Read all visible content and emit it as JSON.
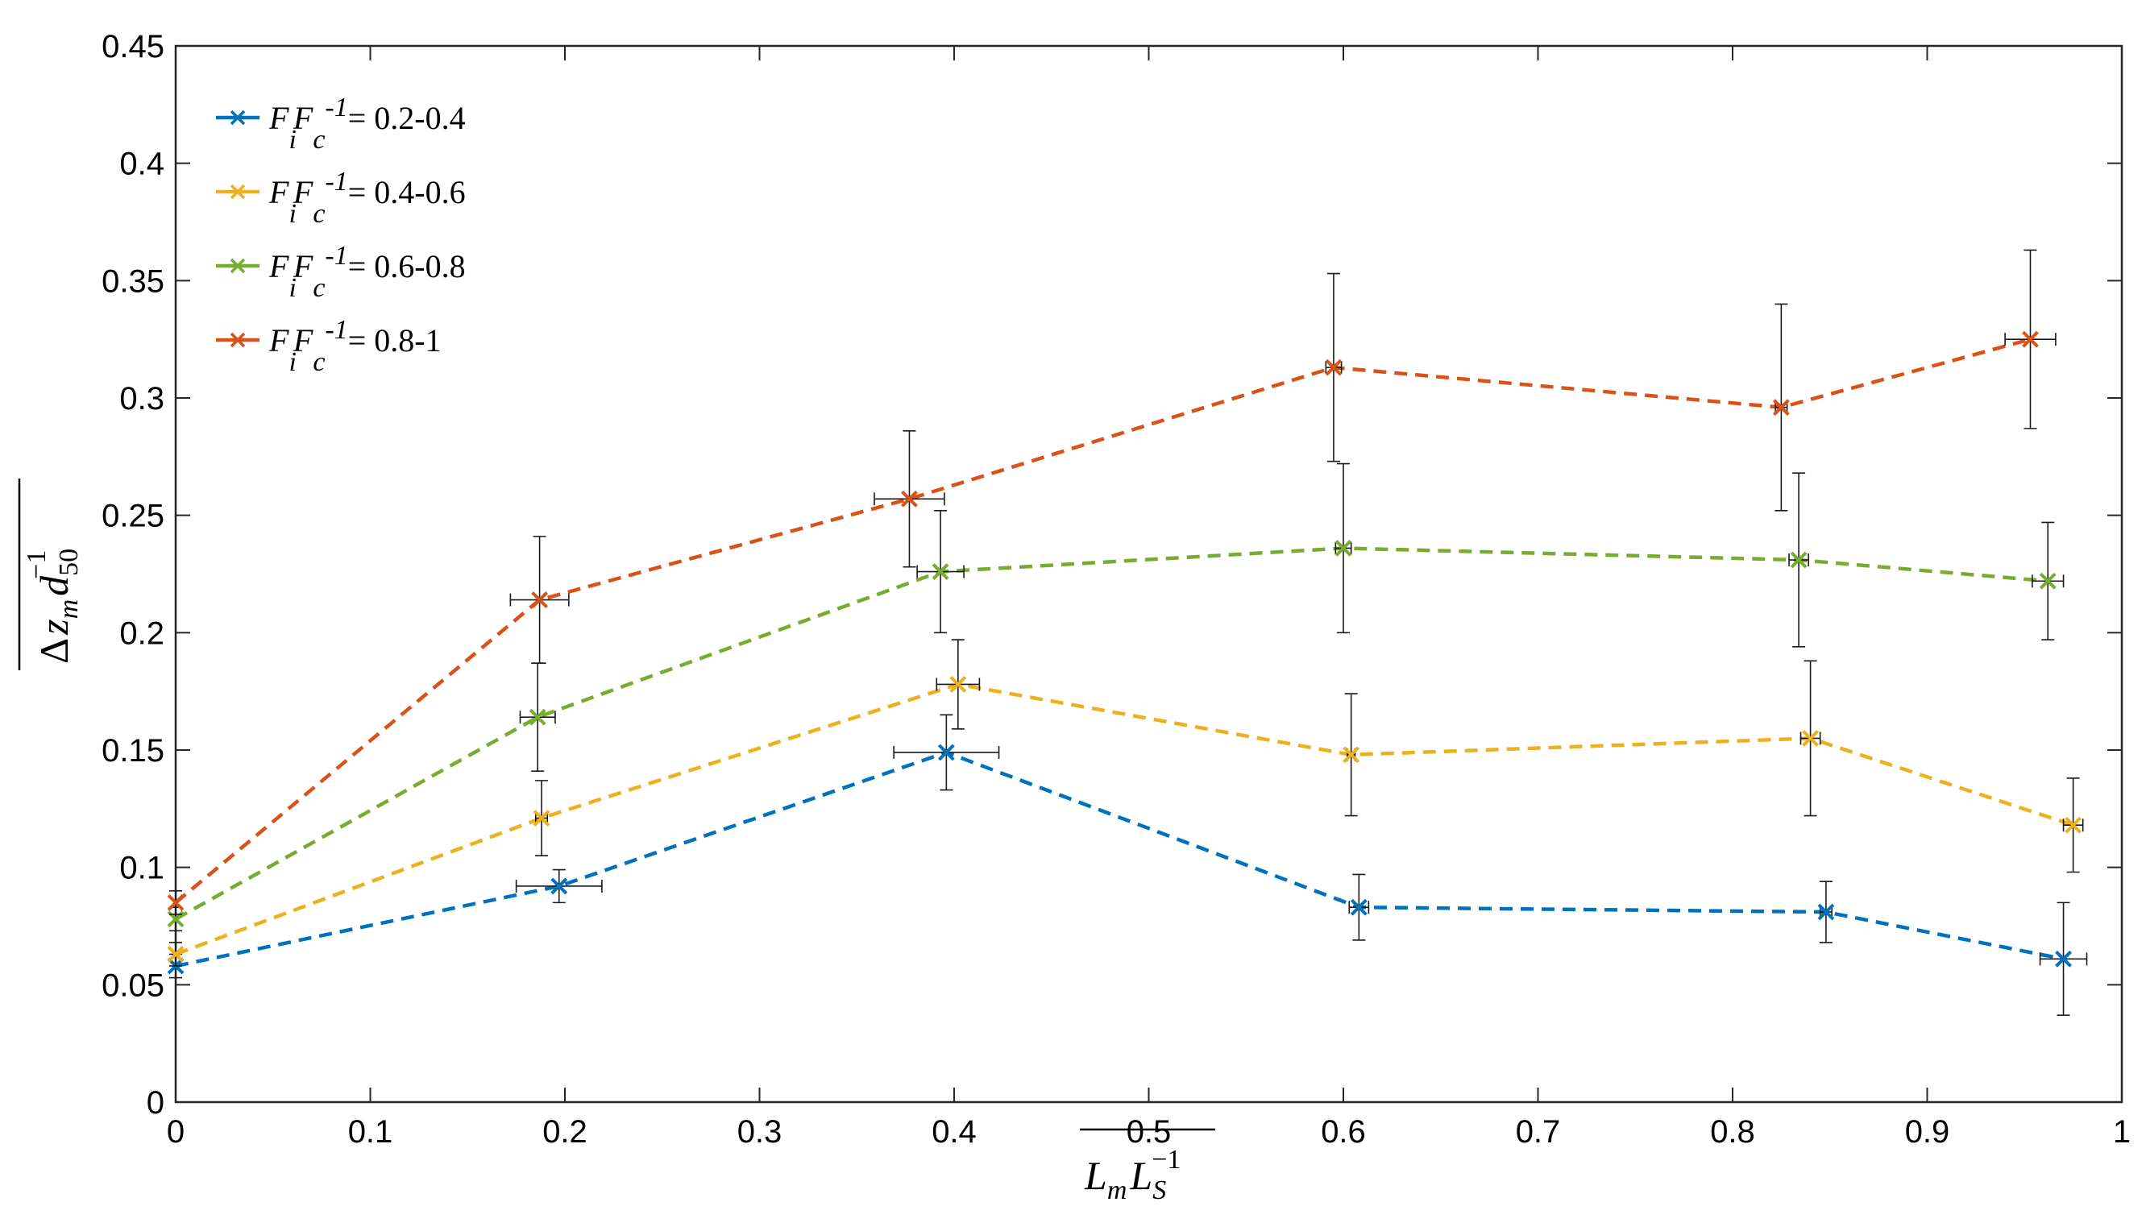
{
  "chart_data": {
    "type": "line",
    "xlabel": {
      "base1": "L",
      "sub1": "m",
      "base2": "L",
      "sub2": "S",
      "sup2": "−1"
    },
    "ylabel": {
      "delta": "Δ",
      "base1": "z",
      "sub1": "m",
      "base2": "d",
      "sub2": "50",
      "sup2": "−1"
    },
    "xlim": [
      0,
      1
    ],
    "ylim": [
      0,
      0.45
    ],
    "xticks": [
      "0",
      "0.1",
      "0.2",
      "0.3",
      "0.4",
      "0.5",
      "0.6",
      "0.7",
      "0.8",
      "0.9",
      "1"
    ],
    "yticks": [
      "0",
      "0.05",
      "0.1",
      "0.15",
      "0.2",
      "0.25",
      "0.3",
      "0.35",
      "0.4",
      "0.45"
    ],
    "grid": false,
    "legend_position": "top-left",
    "series": [
      {
        "label_value": "= 0.2-0.4",
        "color": "#0072BD",
        "x": [
          0,
          0.197,
          0.396,
          0.608,
          0.848,
          0.97
        ],
        "y": [
          0.058,
          0.092,
          0.149,
          0.083,
          0.081,
          0.061
        ],
        "yerr": [
          0.005,
          0.007,
          0.016,
          0.014,
          0.013,
          0.024
        ],
        "xerr": [
          0,
          0.022,
          0.027,
          0.005,
          0.003,
          0.012
        ]
      },
      {
        "label_value": "= 0.4-0.6",
        "color": "#EDB120",
        "x": [
          0,
          0.188,
          0.402,
          0.604,
          0.84,
          0.975
        ],
        "y": [
          0.063,
          0.121,
          0.178,
          0.148,
          0.155,
          0.118
        ],
        "yerr": [
          0.005,
          0.016,
          0.019,
          0.026,
          0.033,
          0.02
        ],
        "xerr": [
          0,
          0.003,
          0.011,
          0.002,
          0.005,
          0.005
        ]
      },
      {
        "label_value": "= 0.6-0.8",
        "color": "#77AC30",
        "x": [
          0,
          0.186,
          0.393,
          0.6,
          0.834,
          0.962
        ],
        "y": [
          0.078,
          0.164,
          0.226,
          0.236,
          0.231,
          0.222
        ],
        "yerr": [
          0.005,
          0.023,
          0.026,
          0.036,
          0.037,
          0.025
        ],
        "xerr": [
          0,
          0.009,
          0.012,
          0.004,
          0.005,
          0.008
        ]
      },
      {
        "label_value": "= 0.8-1",
        "color": "#D95319",
        "x": [
          0,
          0.187,
          0.377,
          0.595,
          0.825,
          0.953
        ],
        "y": [
          0.085,
          0.214,
          0.257,
          0.313,
          0.296,
          0.325
        ],
        "yerr": [
          0.005,
          0.027,
          0.029,
          0.04,
          0.044,
          0.038
        ],
        "xerr": [
          0,
          0.015,
          0.018,
          0.004,
          0.003,
          0.013
        ]
      }
    ],
    "legend_symbol": {
      "base1": "F",
      "sub1": "i",
      "base2": "F",
      "sub2": "c",
      "sup2": "-1"
    }
  }
}
